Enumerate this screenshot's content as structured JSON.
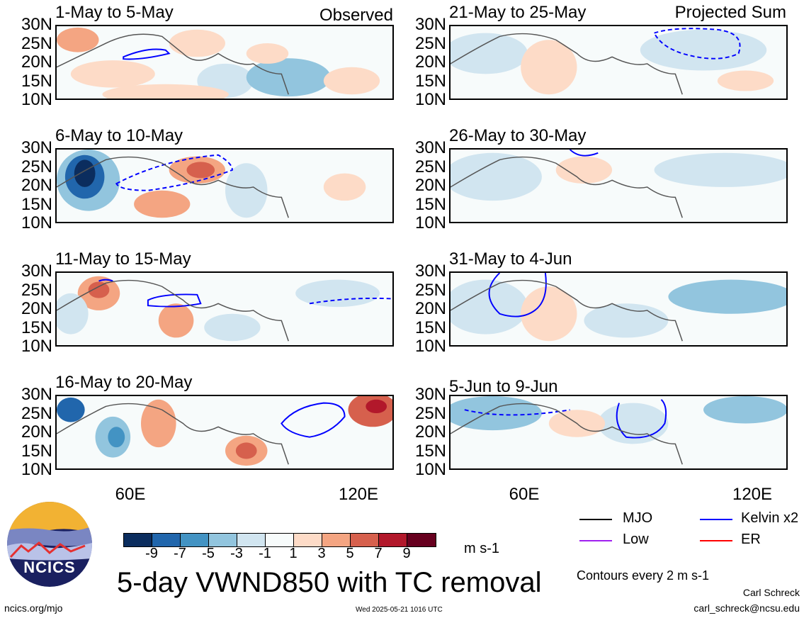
{
  "panels": {
    "left": [
      {
        "title": "1-May to 5-May",
        "tag": "Observed"
      },
      {
        "title": "6-May to 10-May",
        "tag": ""
      },
      {
        "title": "11-May to 15-May",
        "tag": ""
      },
      {
        "title": "16-May to 20-May",
        "tag": ""
      }
    ],
    "right": [
      {
        "title": "21-May to 25-May",
        "tag": "Projected Sum"
      },
      {
        "title": "26-May to 30-May",
        "tag": ""
      },
      {
        "title": "31-May to 4-Jun",
        "tag": ""
      },
      {
        "title": "5-Jun to 9-Jun",
        "tag": ""
      }
    ]
  },
  "lat_labels": [
    "30N",
    "25N",
    "20N",
    "15N",
    "10N"
  ],
  "lon_labels": [
    "60E",
    "120E"
  ],
  "colorbar": {
    "colors": [
      "#0b2d5e",
      "#2166ac",
      "#4393c3",
      "#92c5de",
      "#d1e5f0",
      "#f7fbfb",
      "#fddbc7",
      "#f4a582",
      "#d6604d",
      "#b2182b",
      "#67001f"
    ],
    "ticks": [
      "-9",
      "-7",
      "-5",
      "-3",
      "-1",
      "1",
      "3",
      "5",
      "7",
      "9"
    ],
    "units": "m s-1"
  },
  "title": "5-day VWND850 with TC removal",
  "legend": {
    "items": [
      {
        "label": "MJO",
        "color": "#000000"
      },
      {
        "label": "Kelvin x2",
        "color": "#0000ff"
      },
      {
        "label": "Low",
        "color": "#a020f0"
      },
      {
        "label": "ER",
        "color": "#ff0000"
      }
    ],
    "contours": "Contours every 2 m s-1"
  },
  "logo_text": "NCICS",
  "footer": {
    "website": "ncics.org/mjo",
    "timestamp": "Wed 2025-05-21 1016 UTC",
    "author": "Carl Schreck",
    "email": "carl_schreck@ncsu.edu"
  }
}
